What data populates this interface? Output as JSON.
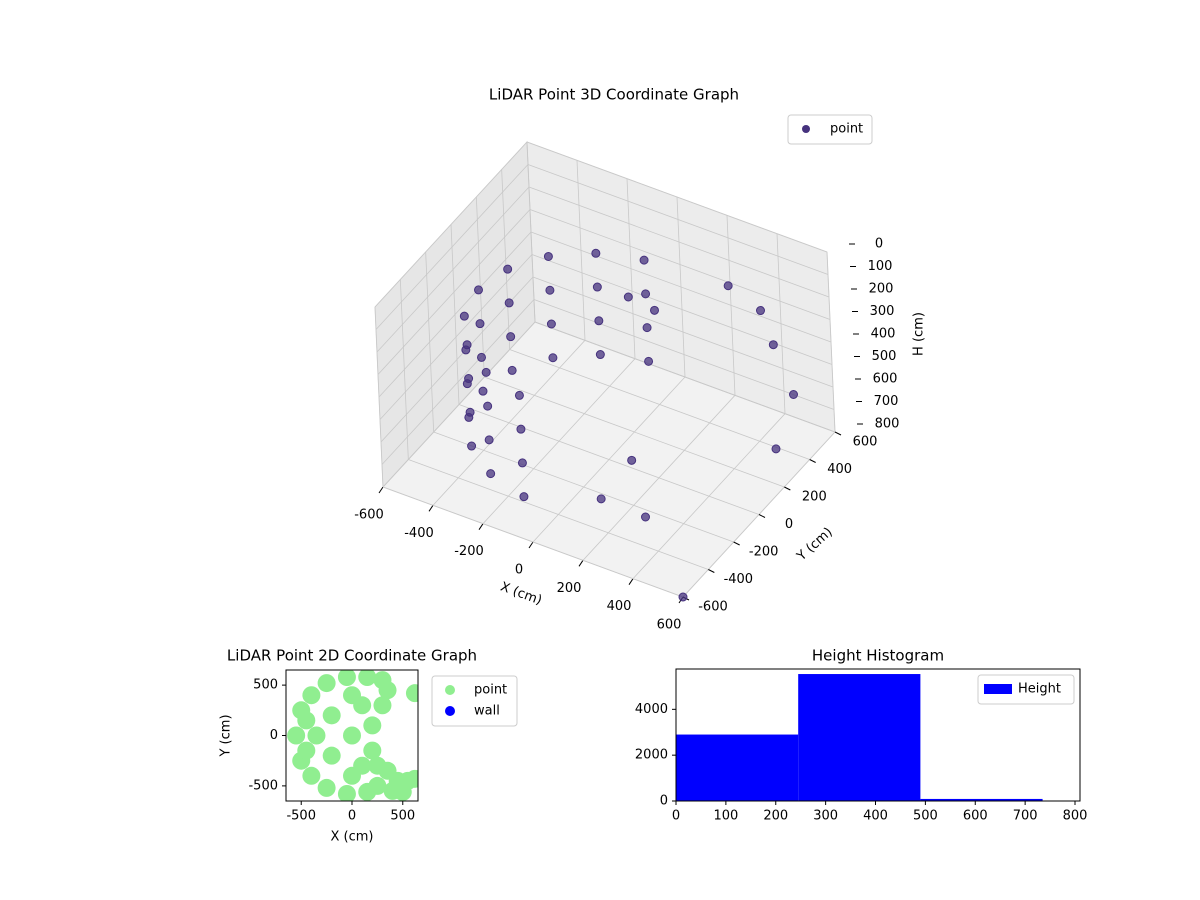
{
  "chart_data": [
    {
      "type": "scatter3d",
      "title": "LiDAR Point 3D Coordinate Graph",
      "x_label": "X (cm)",
      "y_label": "Y (cm)",
      "z_label": "H (cm)",
      "xlim": [
        -600,
        600
      ],
      "ylim": [
        -600,
        600
      ],
      "zlim": [
        0,
        800
      ],
      "z_inverted": true,
      "xticks": [
        -600,
        -400,
        -200,
        0,
        200,
        400,
        600
      ],
      "yticks": [
        -600,
        -400,
        -200,
        0,
        200,
        400,
        600
      ],
      "zticks": [
        0,
        100,
        200,
        300,
        400,
        500,
        600,
        700,
        800
      ],
      "grid": true,
      "legend": "upper right",
      "series": [
        {
          "name": "point",
          "color": "#46327e",
          "x": [
            -87,
            -250,
            -383,
            -470,
            -500,
            -470,
            -383,
            -250,
            -87,
            -87,
            -250,
            -383,
            -470,
            -500,
            -470,
            -383,
            -250,
            -87,
            -87,
            -250,
            -383,
            -470,
            -500,
            -470,
            -383,
            -250,
            -87,
            -87,
            -250,
            -383,
            -470,
            -500,
            -470,
            -383,
            -250,
            -87,
            300,
            400,
            500,
            600,
            600,
            150,
            300,
            0,
            50,
            200,
            600
          ],
          "y": [
            492,
            433,
            321,
            171,
            0,
            -171,
            -321,
            -433,
            -492,
            492,
            433,
            321,
            171,
            0,
            -171,
            -321,
            -433,
            -492,
            492,
            433,
            321,
            171,
            0,
            -171,
            -321,
            -433,
            -492,
            492,
            433,
            321,
            171,
            0,
            -171,
            -321,
            -433,
            -492,
            400,
            450,
            350,
            300,
            150,
            -350,
            -300,
            200,
            300,
            -200,
            -600
          ],
          "z": [
            250,
            250,
            250,
            250,
            250,
            250,
            250,
            250,
            250,
            400,
            400,
            400,
            400,
            400,
            400,
            400,
            400,
            400,
            550,
            550,
            550,
            550,
            550,
            550,
            550,
            550,
            550,
            700,
            700,
            700,
            700,
            700,
            700,
            700,
            700,
            700,
            150,
            250,
            300,
            450,
            600,
            700,
            750,
            200,
            300,
            600,
            800
          ]
        }
      ]
    },
    {
      "type": "scatter",
      "title": "LiDAR Point 2D Coordinate Graph",
      "x_label": "X (cm)",
      "y_label": "Y (cm)",
      "xlim": [
        -650,
        650
      ],
      "ylim": [
        -650,
        650
      ],
      "xticks": [
        -500,
        0,
        500
      ],
      "yticks": [
        -500,
        0,
        500
      ],
      "legend": "outside upper right",
      "series": [
        {
          "name": "point",
          "color": "#90ee90",
          "x": [
            -550,
            -500,
            -500,
            -400,
            -400,
            -250,
            -250,
            -50,
            -50,
            150,
            150,
            300,
            250,
            -350,
            -200,
            -200,
            0,
            100,
            100,
            200,
            200,
            300,
            350,
            450,
            550,
            620,
            620,
            -450,
            -450,
            0,
            0,
            350,
            250,
            400,
            500
          ],
          "y": [
            0,
            250,
            -250,
            400,
            -400,
            520,
            -520,
            580,
            -580,
            580,
            -560,
            550,
            -500,
            0,
            200,
            -200,
            0,
            300,
            -300,
            100,
            -150,
            300,
            -350,
            -450,
            -450,
            -430,
            420,
            150,
            -150,
            400,
            -400,
            450,
            -300,
            -550,
            -560
          ]
        },
        {
          "name": "wall",
          "color": "#0000ff",
          "x": [],
          "y": []
        }
      ]
    },
    {
      "type": "histogram",
      "title": "Height Histogram",
      "bins": [
        0,
        245,
        490,
        735
      ],
      "xlim": [
        0,
        810
      ],
      "ylim": [
        0,
        5760
      ],
      "xticks": [
        0,
        100,
        200,
        300,
        400,
        500,
        600,
        700,
        800
      ],
      "yticks": [
        0,
        2000,
        4000
      ],
      "legend": "upper right",
      "series": [
        {
          "name": "Height",
          "color": "#0000ff",
          "values": [
            2900,
            5540,
            90
          ]
        }
      ]
    }
  ]
}
